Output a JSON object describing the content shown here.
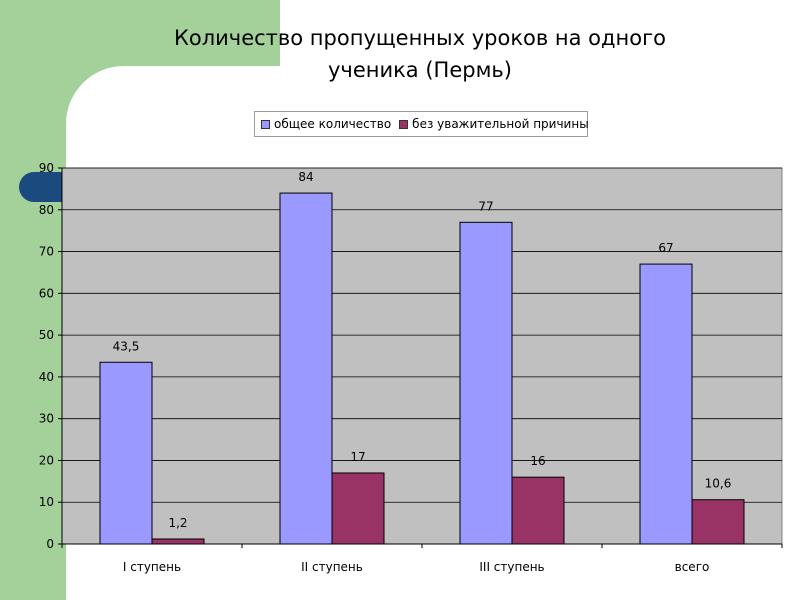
{
  "title_line1": "Количество пропущенных уроков на одного",
  "title_line2": "ученика (Пермь)",
  "chart_data": {
    "type": "bar",
    "title": "Количество пропущенных уроков на одного ученика (Пермь)",
    "categories": [
      "I ступень",
      "II ступень",
      "III ступень",
      "всего"
    ],
    "series": [
      {
        "name": "общее количество",
        "values": [
          43.5,
          84,
          77,
          67
        ],
        "labels": [
          "43,5",
          "84",
          "77",
          "67"
        ],
        "color": "#9999ff"
      },
      {
        "name": "без уважительной причины",
        "values": [
          1.2,
          17,
          16,
          10.6
        ],
        "labels": [
          "1,2",
          "17",
          "16",
          "10,6"
        ],
        "color": "#993366"
      }
    ],
    "ylim": [
      0,
      90
    ],
    "yticks": [
      0,
      10,
      20,
      30,
      40,
      50,
      60,
      70,
      80,
      90
    ],
    "grid": true,
    "legend": "top",
    "plot_background": "#c0c0c0"
  }
}
